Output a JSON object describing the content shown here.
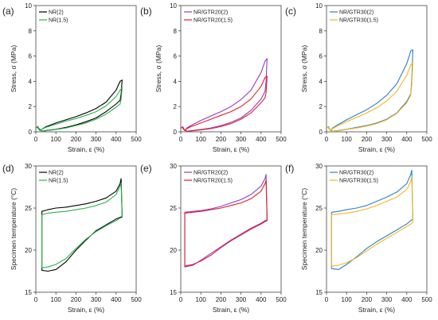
{
  "chart_data": [
    {
      "id": "a",
      "type": "line",
      "panel_label": "(a)",
      "xlabel": "Strain, ε (%)",
      "ylabel": "Stress, σ (MPa)",
      "show_ylabel": true,
      "xlim": [
        0,
        500
      ],
      "ylim": [
        0,
        10
      ],
      "xticks": [
        "0",
        "100",
        "200",
        "300",
        "400",
        "500"
      ],
      "yticks": [
        "0",
        "2",
        "4",
        "6",
        "8",
        "10"
      ],
      "legend_position": "top-left",
      "series": [
        {
          "name": "NR(2)",
          "color": "#000000",
          "x": [
            0,
            10,
            20,
            30,
            50,
            100,
            150,
            200,
            250,
            300,
            350,
            400,
            420,
            430,
            425,
            420,
            400,
            350,
            300,
            250,
            200,
            150,
            100,
            50,
            30,
            20,
            10
          ],
          "y": [
            0.3,
            0.4,
            0.1,
            0.2,
            0.4,
            0.7,
            0.95,
            1.2,
            1.5,
            1.85,
            2.35,
            3.3,
            4.0,
            4.1,
            3.0,
            2.5,
            2.2,
            1.6,
            1.1,
            0.8,
            0.55,
            0.35,
            0.2,
            0.1,
            0.05,
            0.2,
            0.3
          ]
        },
        {
          "name": "NR(1.5)",
          "color": "#2bb24c",
          "x": [
            0,
            10,
            20,
            30,
            50,
            100,
            150,
            200,
            250,
            300,
            350,
            400,
            420,
            430,
            425,
            420,
            400,
            350,
            300,
            250,
            200,
            150,
            100,
            50,
            30,
            20,
            10
          ],
          "y": [
            0.3,
            0.35,
            0.1,
            0.2,
            0.35,
            0.6,
            0.85,
            1.05,
            1.3,
            1.6,
            2.05,
            2.8,
            3.3,
            3.5,
            2.6,
            2.2,
            1.95,
            1.4,
            1.0,
            0.7,
            0.5,
            0.3,
            0.18,
            0.08,
            0.05,
            0.15,
            0.25
          ]
        }
      ]
    },
    {
      "id": "b",
      "type": "line",
      "panel_label": "(b)",
      "xlabel": "Strain, ε (%)",
      "ylabel": "Stress, σ (MPa)",
      "show_ylabel": true,
      "xlim": [
        0,
        500
      ],
      "ylim": [
        0,
        10
      ],
      "xticks": [
        "0",
        "100",
        "200",
        "300",
        "400",
        "500"
      ],
      "yticks": [
        "0",
        "2",
        "4",
        "6",
        "8",
        "10"
      ],
      "legend_position": "top-left",
      "series": [
        {
          "name": "NR/GTR20(2)",
          "color": "#8e3fc7",
          "x": [
            0,
            10,
            20,
            30,
            50,
            100,
            150,
            200,
            250,
            300,
            350,
            400,
            420,
            430,
            425,
            420,
            400,
            350,
            300,
            250,
            200,
            150,
            100,
            50,
            30,
            20,
            10
          ],
          "y": [
            0.3,
            0.4,
            0.1,
            0.3,
            0.5,
            0.9,
            1.25,
            1.6,
            2.0,
            2.55,
            3.3,
            4.7,
            5.6,
            5.8,
            4.0,
            3.2,
            2.6,
            1.7,
            1.1,
            0.75,
            0.5,
            0.3,
            0.18,
            0.08,
            0.05,
            0.15,
            0.3
          ]
        },
        {
          "name": "NR/GTR20(1.5)",
          "color": "#e0202a",
          "x": [
            0,
            10,
            20,
            30,
            50,
            100,
            150,
            200,
            250,
            300,
            350,
            400,
            420,
            430,
            425,
            420,
            400,
            350,
            300,
            250,
            200,
            150,
            100,
            50,
            30,
            20,
            10
          ],
          "y": [
            0.3,
            0.35,
            0.1,
            0.25,
            0.4,
            0.7,
            1.0,
            1.3,
            1.6,
            2.0,
            2.6,
            3.6,
            4.3,
            4.4,
            3.1,
            2.7,
            2.3,
            1.5,
            1.0,
            0.65,
            0.42,
            0.25,
            0.15,
            0.06,
            0.04,
            0.12,
            0.25
          ]
        }
      ]
    },
    {
      "id": "c",
      "type": "line",
      "panel_label": "(c)",
      "xlabel": "Strain, ε (%)",
      "ylabel": "Stress, σ (MPa)",
      "show_ylabel": true,
      "xlim": [
        0,
        500
      ],
      "ylim": [
        0,
        10
      ],
      "xticks": [
        "0",
        "100",
        "200",
        "300",
        "400",
        "500"
      ],
      "yticks": [
        "0",
        "2",
        "4",
        "6",
        "8",
        "10"
      ],
      "legend_position": "top-left",
      "series": [
        {
          "name": "NR/GTR30(2)",
          "color": "#2f7fc9",
          "x": [
            0,
            10,
            20,
            30,
            50,
            100,
            150,
            200,
            250,
            300,
            350,
            400,
            420,
            430,
            425,
            420,
            400,
            350,
            300,
            250,
            200,
            150,
            100,
            50,
            30,
            20,
            10
          ],
          "y": [
            0.3,
            0.4,
            0.1,
            0.3,
            0.5,
            0.95,
            1.35,
            1.75,
            2.25,
            2.9,
            3.8,
            5.4,
            6.4,
            6.5,
            4.2,
            3.0,
            2.4,
            1.5,
            1.0,
            0.7,
            0.5,
            0.35,
            0.2,
            0.08,
            0.05,
            0.15,
            0.3
          ]
        },
        {
          "name": "NR/GTR30(1.5)",
          "color": "#f2b820",
          "x": [
            0,
            10,
            20,
            30,
            50,
            100,
            150,
            200,
            250,
            300,
            350,
            400,
            420,
            430,
            425,
            420,
            400,
            350,
            300,
            250,
            200,
            150,
            100,
            50,
            30,
            20,
            10
          ],
          "y": [
            0.3,
            0.35,
            0.1,
            0.25,
            0.42,
            0.8,
            1.15,
            1.5,
            1.9,
            2.45,
            3.2,
            4.5,
            5.3,
            5.5,
            3.8,
            2.9,
            2.3,
            1.45,
            0.95,
            0.65,
            0.45,
            0.3,
            0.18,
            0.07,
            0.04,
            0.12,
            0.25
          ]
        }
      ]
    },
    {
      "id": "d",
      "type": "line",
      "panel_label": "(d)",
      "xlabel": "Strain, ε (%)",
      "ylabel": "Specimen temperature (°C)",
      "show_ylabel": true,
      "xlim": [
        0,
        500
      ],
      "ylim": [
        15,
        30
      ],
      "xticks": [
        "0",
        "100",
        "200",
        "300",
        "400",
        "500"
      ],
      "yticks": [
        "15",
        "20",
        "25",
        "30"
      ],
      "legend_position": "top-left",
      "series": [
        {
          "name": "NR(2)",
          "color": "#000000",
          "x": [
            30,
            30,
            60,
            100,
            150,
            200,
            250,
            300,
            350,
            400,
            420,
            430,
            425,
            420,
            400,
            350,
            300,
            250,
            200,
            150,
            100,
            60,
            30,
            30
          ],
          "y": [
            23.5,
            17.6,
            17.5,
            17.7,
            18.6,
            20.0,
            21.2,
            22.3,
            23.0,
            23.7,
            23.9,
            24.0,
            28.5,
            27.9,
            27.0,
            26.2,
            25.8,
            25.5,
            25.3,
            25.1,
            25.0,
            24.8,
            24.6,
            23.5
          ]
        },
        {
          "name": "NR(1.5)",
          "color": "#2bb24c",
          "x": [
            30,
            30,
            60,
            100,
            150,
            200,
            250,
            300,
            350,
            400,
            420,
            430,
            425,
            420,
            400,
            350,
            300,
            250,
            200,
            150,
            100,
            60,
            30,
            30
          ],
          "y": [
            23.3,
            17.9,
            18.0,
            18.3,
            19.0,
            20.2,
            21.3,
            22.2,
            22.9,
            23.5,
            23.8,
            23.9,
            28.0,
            27.6,
            26.6,
            25.7,
            25.3,
            25.0,
            24.8,
            24.6,
            24.5,
            24.4,
            24.2,
            23.3
          ]
        }
      ]
    },
    {
      "id": "e",
      "type": "line",
      "panel_label": "(e)",
      "xlabel": "Strain, ε (%)",
      "ylabel": "",
      "show_ylabel": false,
      "xlim": [
        0,
        500
      ],
      "ylim": [
        15,
        30
      ],
      "xticks": [
        "0",
        "100",
        "200",
        "300",
        "400",
        "500"
      ],
      "yticks": [
        "15",
        "20",
        "25",
        "30"
      ],
      "legend_position": "top-left",
      "series": [
        {
          "name": "NR/GTR20(2)",
          "color": "#8e3fc7",
          "x": [
            20,
            20,
            60,
            100,
            150,
            200,
            250,
            300,
            350,
            400,
            420,
            430,
            425,
            420,
            400,
            350,
            300,
            250,
            200,
            150,
            100,
            60,
            20,
            20
          ],
          "y": [
            23.5,
            18.0,
            18.2,
            18.8,
            19.6,
            20.4,
            21.2,
            21.9,
            22.6,
            23.2,
            23.5,
            23.6,
            29.0,
            28.5,
            27.6,
            26.6,
            26.0,
            25.6,
            25.2,
            24.9,
            24.7,
            24.6,
            24.5,
            23.5
          ]
        },
        {
          "name": "NR/GTR20(1.5)",
          "color": "#e0202a",
          "x": [
            20,
            20,
            60,
            100,
            150,
            200,
            250,
            300,
            350,
            400,
            420,
            430,
            425,
            420,
            400,
            350,
            300,
            250,
            200,
            150,
            100,
            60,
            20,
            20
          ],
          "y": [
            23.3,
            18.1,
            18.3,
            18.7,
            19.4,
            20.3,
            21.1,
            21.8,
            22.5,
            23.1,
            23.4,
            23.5,
            28.3,
            27.9,
            27.0,
            26.1,
            25.6,
            25.3,
            25.0,
            24.8,
            24.6,
            24.5,
            24.4,
            23.3
          ]
        }
      ]
    },
    {
      "id": "f",
      "type": "line",
      "panel_label": "(f)",
      "xlabel": "Strain, ε (%)",
      "ylabel": "Specimen temperature (°C)",
      "show_ylabel": true,
      "xlim": [
        0,
        500
      ],
      "ylim": [
        15,
        30
      ],
      "xticks": [
        "0",
        "100",
        "200",
        "300",
        "400",
        "500"
      ],
      "yticks": [
        "15",
        "20",
        "25",
        "30"
      ],
      "legend_position": "top-left",
      "series": [
        {
          "name": "NR/GTR30(2)",
          "color": "#2f7fc9",
          "x": [
            25,
            25,
            60,
            100,
            150,
            200,
            250,
            300,
            350,
            400,
            420,
            430,
            425,
            420,
            400,
            350,
            300,
            250,
            200,
            150,
            100,
            60,
            25,
            25
          ],
          "y": [
            23.3,
            17.8,
            17.7,
            18.3,
            19.2,
            20.2,
            21.0,
            21.7,
            22.4,
            23.1,
            23.5,
            23.7,
            29.5,
            29.0,
            27.9,
            26.9,
            26.3,
            25.8,
            25.3,
            25.0,
            24.8,
            24.6,
            24.5,
            23.3
          ]
        },
        {
          "name": "NR/GTR30(1.5)",
          "color": "#f2b820",
          "x": [
            25,
            25,
            60,
            100,
            150,
            200,
            250,
            300,
            350,
            400,
            420,
            430,
            425,
            420,
            400,
            350,
            300,
            250,
            200,
            150,
            100,
            60,
            25,
            25
          ],
          "y": [
            23.1,
            18.1,
            18.2,
            18.5,
            19.1,
            19.9,
            20.7,
            21.4,
            22.1,
            22.8,
            23.1,
            23.3,
            28.7,
            28.2,
            27.2,
            26.3,
            25.8,
            25.3,
            24.9,
            24.6,
            24.4,
            24.3,
            24.2,
            23.1
          ]
        }
      ]
    }
  ]
}
